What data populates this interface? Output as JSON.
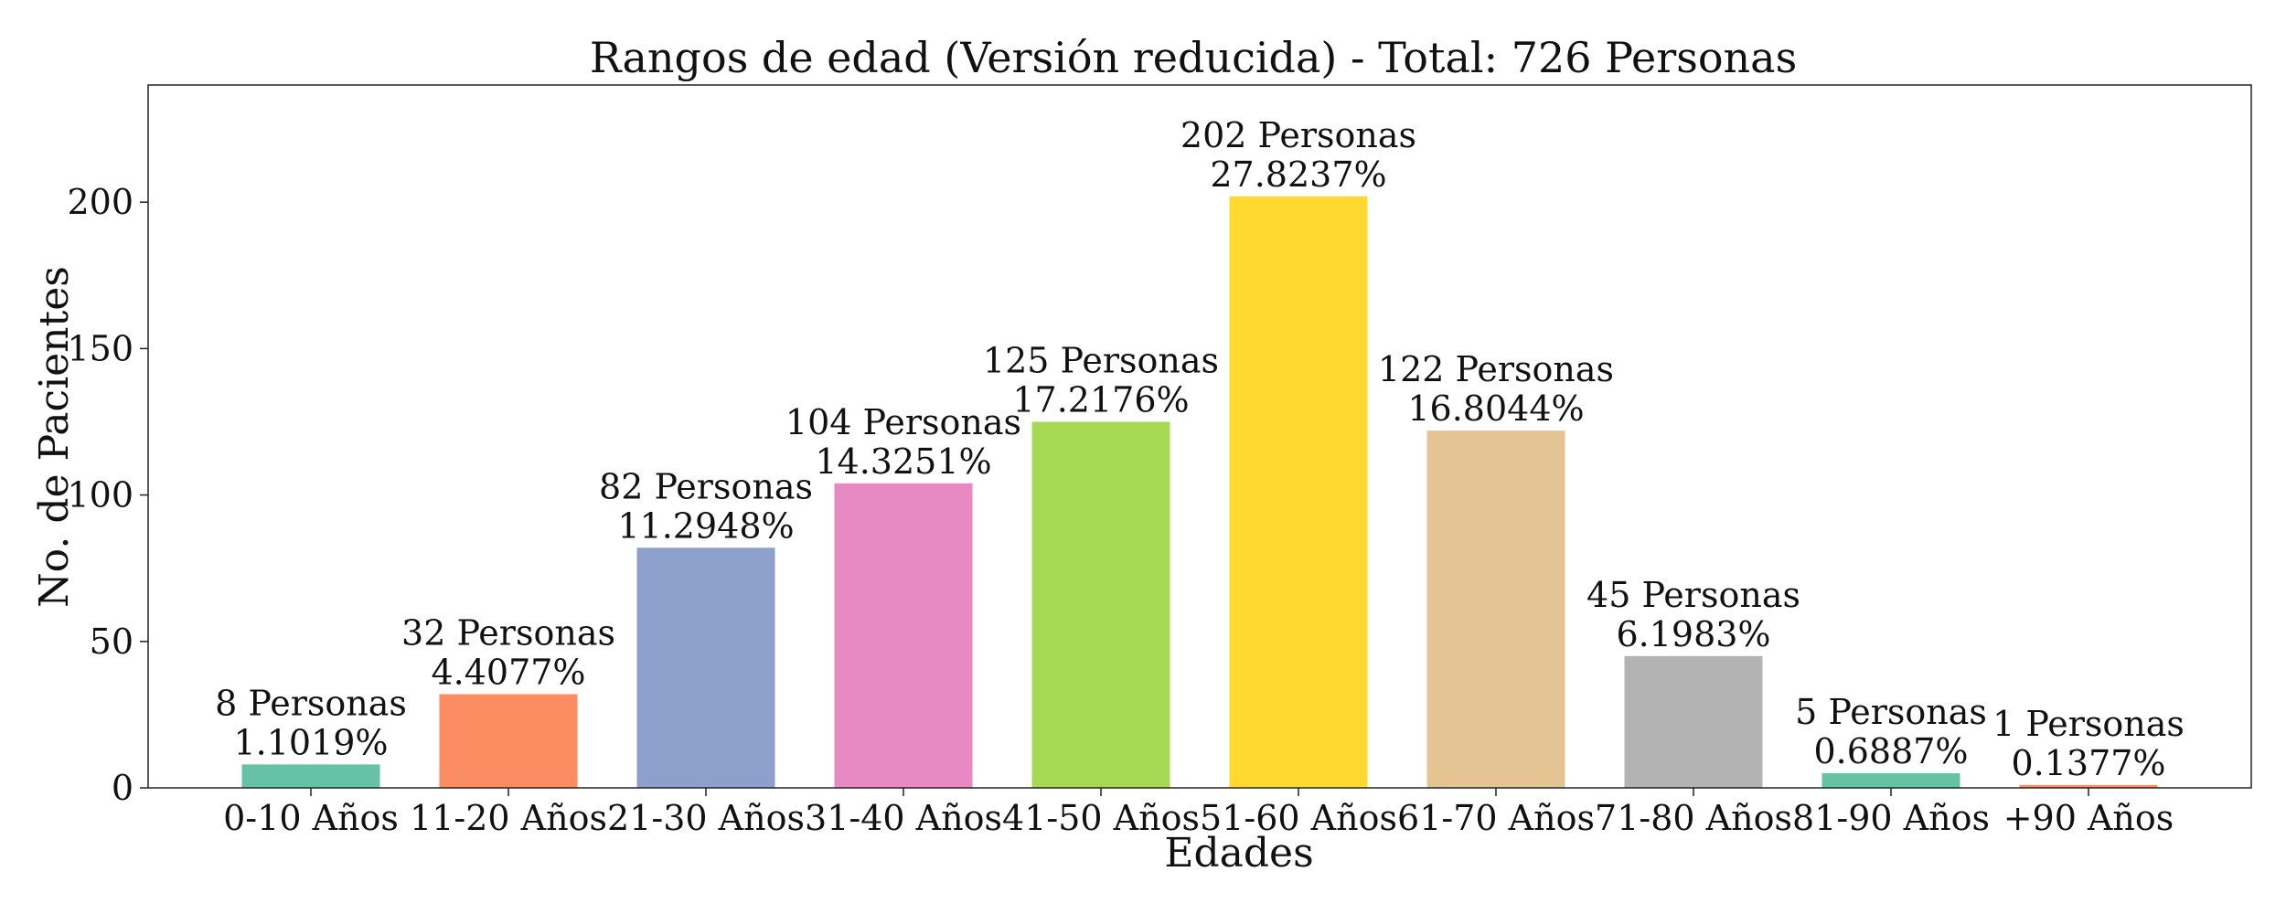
{
  "chart_data": {
    "type": "bar",
    "title": "Rangos de edad (Versión reducida) - Total: 726 Personas",
    "xlabel": "Edades",
    "ylabel": "No. de Pacientes",
    "ylim": [
      0,
      240
    ],
    "yticks": [
      0,
      50,
      100,
      150,
      200
    ],
    "grid": false,
    "categories": [
      "0-10 Años",
      "11-20 Años",
      "21-30 Años",
      "31-40 Años",
      "41-50 Años",
      "51-60 Años",
      "61-70 Años",
      "71-80 Años",
      "81-90 Años",
      "+90 Años"
    ],
    "values": [
      8,
      32,
      82,
      104,
      125,
      202,
      122,
      45,
      5,
      1
    ],
    "value_labels": [
      "8 Personas",
      "32 Personas",
      "82 Personas",
      "104 Personas",
      "125 Personas",
      "202 Personas",
      "122 Personas",
      "45 Personas",
      "5 Personas",
      "1 Personas"
    ],
    "percent_labels": [
      "1.1019%",
      "4.4077%",
      "11.2948%",
      "14.3251%",
      "17.2176%",
      "27.8237%",
      "16.8044%",
      "6.1983%",
      "0.6887%",
      "0.1377%"
    ],
    "colors": [
      "#66c2a5",
      "#fc8d62",
      "#8da0cb",
      "#e78ac3",
      "#a6d854",
      "#ffd92f",
      "#e5c494",
      "#b3b3b3",
      "#66c2a5",
      "#fc8d62"
    ]
  }
}
